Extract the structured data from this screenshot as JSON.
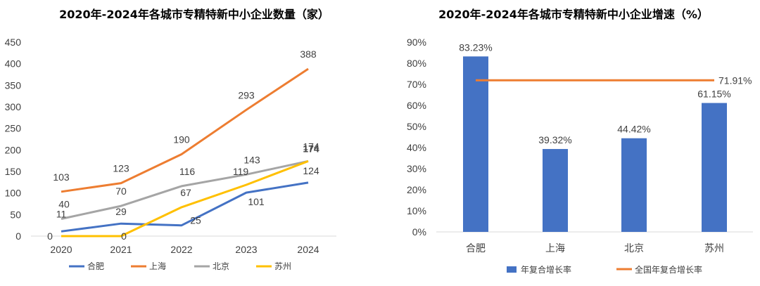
{
  "chart_data": [
    {
      "type": "line",
      "title": "2020年-2024年各城市专精特新中小企业数量（家）",
      "categories": [
        "2020",
        "2021",
        "2022",
        "2023",
        "2024"
      ],
      "ylim": [
        0,
        450
      ],
      "yticks": [
        "0",
        "50",
        "100",
        "150",
        "200",
        "250",
        "300",
        "350",
        "400",
        "450"
      ],
      "series": [
        {
          "name": "合肥",
          "color": "#4472C4",
          "values": [
            11,
            29,
            25,
            101,
            124
          ],
          "labels": [
            "11",
            "29",
            "25",
            "101",
            "124"
          ]
        },
        {
          "name": "上海",
          "color": "#ED7D31",
          "values": [
            103,
            123,
            190,
            293,
            388
          ],
          "labels": [
            "103",
            "123",
            "190",
            "293",
            "388"
          ]
        },
        {
          "name": "北京",
          "color": "#A5A5A5",
          "values": [
            40,
            70,
            116,
            143,
            174
          ],
          "labels": [
            "40",
            "70",
            "116",
            "143",
            "174"
          ]
        },
        {
          "name": "苏州",
          "color": "#FFC000",
          "values": [
            0,
            0,
            67,
            119,
            174
          ],
          "labels": [
            "0",
            "0",
            "67",
            "119",
            "174"
          ]
        }
      ]
    },
    {
      "type": "bar",
      "title": "2020年-2024年各城市专精特新中小企业增速（%）",
      "categories": [
        "合肥",
        "上海",
        "北京",
        "苏州"
      ],
      "values": [
        83.23,
        39.32,
        44.42,
        61.15
      ],
      "value_labels": [
        "83.23%",
        "39.32%",
        "44.42%",
        "61.15%"
      ],
      "bar_series_name": "年复合增长率",
      "bar_color": "#4472C4",
      "reference_line": {
        "name": "全国年复合增长率",
        "value": 71.91,
        "label": "71.91%",
        "color": "#ED7D31"
      },
      "ylim": [
        0,
        90
      ],
      "yticks": [
        "0%",
        "10%",
        "20%",
        "30%",
        "40%",
        "50%",
        "60%",
        "70%",
        "80%",
        "90%"
      ]
    }
  ]
}
